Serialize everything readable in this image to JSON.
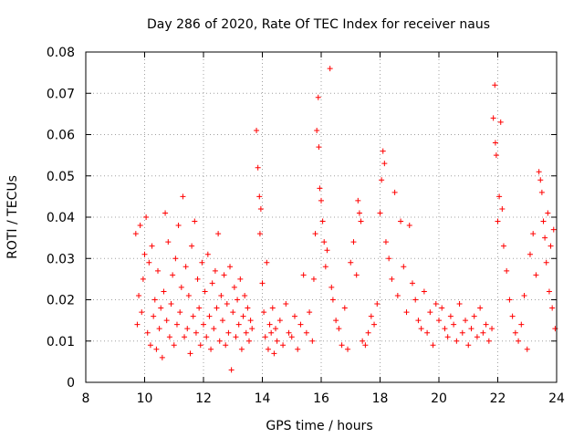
{
  "chart_data": {
    "type": "scatter",
    "title": "Day 286 of 2020, Rate Of TEC Index for receiver naus",
    "xlabel": "GPS time / hours",
    "ylabel": "ROTI / TECUs",
    "xlim": [
      8,
      24
    ],
    "ylim": [
      0,
      0.08
    ],
    "xticks": [
      "8",
      "10",
      "12",
      "14",
      "16",
      "18",
      "20",
      "22",
      "24"
    ],
    "yticks": [
      "0",
      "0.01",
      "0.02",
      "0.03",
      "0.04",
      "0.05",
      "0.06",
      "0.07",
      "0.08"
    ],
    "grid": true,
    "marker": "+",
    "color": "#ff0000",
    "series": [
      {
        "points": [
          [
            9.7,
            0.036
          ],
          [
            9.75,
            0.014
          ],
          [
            9.8,
            0.021
          ],
          [
            9.85,
            0.038
          ],
          [
            9.9,
            0.017
          ],
          [
            9.95,
            0.025
          ],
          [
            10.0,
            0.031
          ],
          [
            10.05,
            0.04
          ],
          [
            10.1,
            0.012
          ],
          [
            10.15,
            0.029
          ],
          [
            10.2,
            0.009
          ],
          [
            10.25,
            0.033
          ],
          [
            10.3,
            0.016
          ],
          [
            10.35,
            0.02
          ],
          [
            10.4,
            0.008
          ],
          [
            10.45,
            0.027
          ],
          [
            10.5,
            0.013
          ],
          [
            10.55,
            0.018
          ],
          [
            10.6,
            0.006
          ],
          [
            10.65,
            0.022
          ],
          [
            10.7,
            0.041
          ],
          [
            10.75,
            0.015
          ],
          [
            10.8,
            0.034
          ],
          [
            10.85,
            0.011
          ],
          [
            10.9,
            0.019
          ],
          [
            10.95,
            0.026
          ],
          [
            11.0,
            0.009
          ],
          [
            11.05,
            0.03
          ],
          [
            11.1,
            0.014
          ],
          [
            11.15,
            0.038
          ],
          [
            11.2,
            0.017
          ],
          [
            11.25,
            0.023
          ],
          [
            11.3,
            0.045
          ],
          [
            11.35,
            0.011
          ],
          [
            11.4,
            0.028
          ],
          [
            11.45,
            0.013
          ],
          [
            11.5,
            0.021
          ],
          [
            11.55,
            0.007
          ],
          [
            11.6,
            0.033
          ],
          [
            11.65,
            0.016
          ],
          [
            11.7,
            0.039
          ],
          [
            11.75,
            0.012
          ],
          [
            11.8,
            0.025
          ],
          [
            11.85,
            0.018
          ],
          [
            11.9,
            0.009
          ],
          [
            11.95,
            0.029
          ],
          [
            12.0,
            0.014
          ],
          [
            12.05,
            0.022
          ],
          [
            12.1,
            0.011
          ],
          [
            12.15,
            0.031
          ],
          [
            12.2,
            0.016
          ],
          [
            12.25,
            0.008
          ],
          [
            12.3,
            0.024
          ],
          [
            12.35,
            0.013
          ],
          [
            12.4,
            0.027
          ],
          [
            12.45,
            0.018
          ],
          [
            12.5,
            0.036
          ],
          [
            12.55,
            0.01
          ],
          [
            12.6,
            0.021
          ],
          [
            12.65,
            0.015
          ],
          [
            12.7,
            0.026
          ],
          [
            12.75,
            0.009
          ],
          [
            12.8,
            0.019
          ],
          [
            12.85,
            0.012
          ],
          [
            12.9,
            0.028
          ],
          [
            12.95,
            0.003
          ],
          [
            13.0,
            0.017
          ],
          [
            13.05,
            0.023
          ],
          [
            13.1,
            0.011
          ],
          [
            13.15,
            0.02
          ],
          [
            13.2,
            0.014
          ],
          [
            13.25,
            0.025
          ],
          [
            13.3,
            0.008
          ],
          [
            13.35,
            0.016
          ],
          [
            13.4,
            0.021
          ],
          [
            13.45,
            0.012
          ],
          [
            13.5,
            0.018
          ],
          [
            13.55,
            0.01
          ],
          [
            13.6,
            0.015
          ],
          [
            13.65,
            0.013
          ],
          [
            13.8,
            0.061
          ],
          [
            13.85,
            0.052
          ],
          [
            13.9,
            0.045
          ],
          [
            13.92,
            0.036
          ],
          [
            13.95,
            0.042
          ],
          [
            14.0,
            0.024
          ],
          [
            14.05,
            0.017
          ],
          [
            14.1,
            0.011
          ],
          [
            14.15,
            0.029
          ],
          [
            14.2,
            0.008
          ],
          [
            14.25,
            0.014
          ],
          [
            14.3,
            0.012
          ],
          [
            14.35,
            0.018
          ],
          [
            14.4,
            0.007
          ],
          [
            14.45,
            0.013
          ],
          [
            14.5,
            0.01
          ],
          [
            14.6,
            0.015
          ],
          [
            14.7,
            0.009
          ],
          [
            14.8,
            0.019
          ],
          [
            14.9,
            0.012
          ],
          [
            15.0,
            0.011
          ],
          [
            15.1,
            0.016
          ],
          [
            15.2,
            0.008
          ],
          [
            15.3,
            0.014
          ],
          [
            15.4,
            0.026
          ],
          [
            15.5,
            0.012
          ],
          [
            15.6,
            0.017
          ],
          [
            15.7,
            0.01
          ],
          [
            15.75,
            0.025
          ],
          [
            15.8,
            0.036
          ],
          [
            15.85,
            0.061
          ],
          [
            15.9,
            0.069
          ],
          [
            15.92,
            0.057
          ],
          [
            15.95,
            0.047
          ],
          [
            16.0,
            0.044
          ],
          [
            16.05,
            0.039
          ],
          [
            16.1,
            0.034
          ],
          [
            16.15,
            0.028
          ],
          [
            16.2,
            0.032
          ],
          [
            16.3,
            0.076
          ],
          [
            16.35,
            0.023
          ],
          [
            16.4,
            0.02
          ],
          [
            16.5,
            0.015
          ],
          [
            16.6,
            0.013
          ],
          [
            16.7,
            0.009
          ],
          [
            16.8,
            0.018
          ],
          [
            16.9,
            0.008
          ],
          [
            17.0,
            0.029
          ],
          [
            17.1,
            0.034
          ],
          [
            17.2,
            0.026
          ],
          [
            17.25,
            0.044
          ],
          [
            17.3,
            0.041
          ],
          [
            17.35,
            0.039
          ],
          [
            17.4,
            0.01
          ],
          [
            17.5,
            0.009
          ],
          [
            17.6,
            0.012
          ],
          [
            17.7,
            0.016
          ],
          [
            17.8,
            0.014
          ],
          [
            17.9,
            0.019
          ],
          [
            18.0,
            0.041
          ],
          [
            18.05,
            0.049
          ],
          [
            18.1,
            0.056
          ],
          [
            18.15,
            0.053
          ],
          [
            18.2,
            0.034
          ],
          [
            18.3,
            0.03
          ],
          [
            18.4,
            0.025
          ],
          [
            18.5,
            0.046
          ],
          [
            18.6,
            0.021
          ],
          [
            18.7,
            0.039
          ],
          [
            18.8,
            0.028
          ],
          [
            18.9,
            0.017
          ],
          [
            19.0,
            0.038
          ],
          [
            19.1,
            0.024
          ],
          [
            19.2,
            0.02
          ],
          [
            19.3,
            0.015
          ],
          [
            19.4,
            0.013
          ],
          [
            19.5,
            0.022
          ],
          [
            19.6,
            0.012
          ],
          [
            19.7,
            0.017
          ],
          [
            19.8,
            0.009
          ],
          [
            19.9,
            0.019
          ],
          [
            20.0,
            0.015
          ],
          [
            20.1,
            0.018
          ],
          [
            20.2,
            0.013
          ],
          [
            20.3,
            0.011
          ],
          [
            20.4,
            0.016
          ],
          [
            20.5,
            0.014
          ],
          [
            20.6,
            0.01
          ],
          [
            20.7,
            0.019
          ],
          [
            20.8,
            0.012
          ],
          [
            20.9,
            0.015
          ],
          [
            21.0,
            0.009
          ],
          [
            21.1,
            0.013
          ],
          [
            21.2,
            0.016
          ],
          [
            21.3,
            0.011
          ],
          [
            21.4,
            0.018
          ],
          [
            21.5,
            0.012
          ],
          [
            21.6,
            0.014
          ],
          [
            21.7,
            0.01
          ],
          [
            21.8,
            0.013
          ],
          [
            21.85,
            0.064
          ],
          [
            21.9,
            0.072
          ],
          [
            21.92,
            0.058
          ],
          [
            21.95,
            0.055
          ],
          [
            22.0,
            0.039
          ],
          [
            22.05,
            0.045
          ],
          [
            22.1,
            0.063
          ],
          [
            22.15,
            0.042
          ],
          [
            22.2,
            0.033
          ],
          [
            22.3,
            0.027
          ],
          [
            22.4,
            0.02
          ],
          [
            22.5,
            0.016
          ],
          [
            22.6,
            0.012
          ],
          [
            22.7,
            0.01
          ],
          [
            22.8,
            0.014
          ],
          [
            22.9,
            0.021
          ],
          [
            23.0,
            0.008
          ],
          [
            23.1,
            0.031
          ],
          [
            23.2,
            0.036
          ],
          [
            23.3,
            0.026
          ],
          [
            23.4,
            0.051
          ],
          [
            23.45,
            0.049
          ],
          [
            23.5,
            0.046
          ],
          [
            23.55,
            0.039
          ],
          [
            23.6,
            0.035
          ],
          [
            23.65,
            0.029
          ],
          [
            23.7,
            0.041
          ],
          [
            23.75,
            0.022
          ],
          [
            23.8,
            0.033
          ],
          [
            23.85,
            0.018
          ],
          [
            23.9,
            0.037
          ],
          [
            23.95,
            0.013
          ]
        ]
      }
    ]
  }
}
